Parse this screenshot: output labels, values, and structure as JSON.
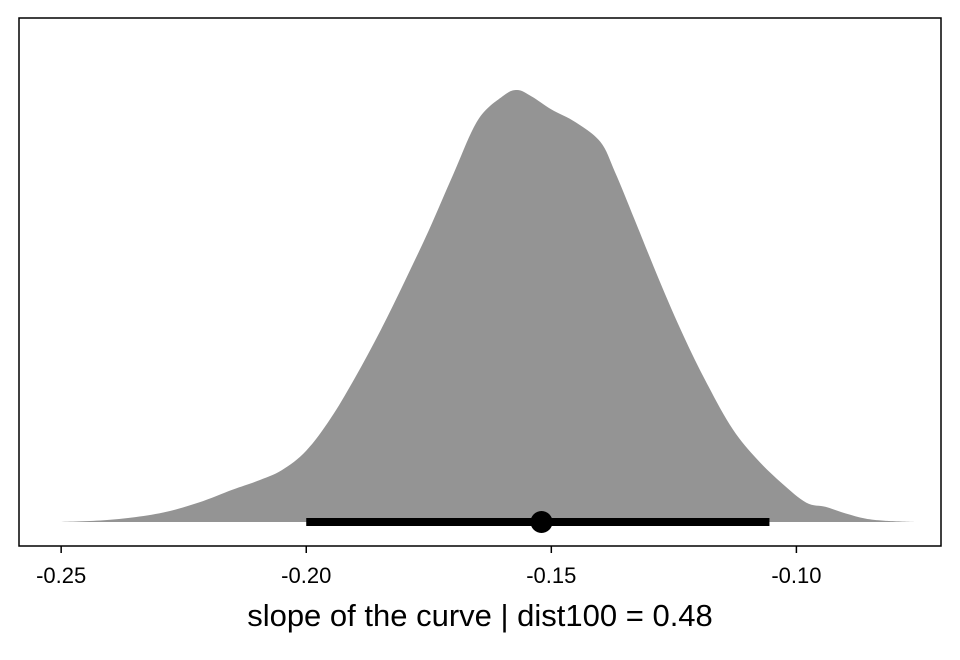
{
  "chart_data": {
    "type": "area",
    "title": "",
    "xlabel": "slope of the curve | dist100 = 0.48",
    "ylabel": "",
    "xlim": [
      -0.2586,
      -0.0705
    ],
    "ylim": [
      0,
      1.0
    ],
    "x_ticks": [
      -0.25,
      -0.2,
      -0.15,
      -0.1
    ],
    "x_tick_labels": [
      "-0.25",
      "-0.20",
      "-0.15",
      "-0.10"
    ],
    "grid": false,
    "legend": "none",
    "fill_color": "#949494",
    "interval_color": "#000000",
    "density": {
      "x": [
        -0.25,
        -0.24,
        -0.23,
        -0.222,
        -0.215,
        -0.21,
        -0.205,
        -0.2,
        -0.195,
        -0.19,
        -0.185,
        -0.18,
        -0.175,
        -0.17,
        -0.165,
        -0.16,
        -0.157,
        -0.154,
        -0.15,
        -0.145,
        -0.14,
        -0.137,
        -0.133,
        -0.128,
        -0.123,
        -0.118,
        -0.113,
        -0.108,
        -0.103,
        -0.098,
        -0.094,
        -0.09,
        -0.086,
        -0.082,
        -0.0755
      ],
      "y": [
        0.0,
        0.005,
        0.02,
        0.045,
        0.075,
        0.095,
        0.12,
        0.165,
        0.24,
        0.335,
        0.44,
        0.555,
        0.675,
        0.805,
        0.93,
        0.985,
        1.0,
        0.985,
        0.955,
        0.925,
        0.88,
        0.81,
        0.7,
        0.56,
        0.43,
        0.315,
        0.215,
        0.145,
        0.09,
        0.045,
        0.035,
        0.02,
        0.008,
        0.003,
        0.0
      ]
    },
    "point_estimate": -0.152,
    "interval": [
      -0.2,
      -0.1055
    ]
  }
}
